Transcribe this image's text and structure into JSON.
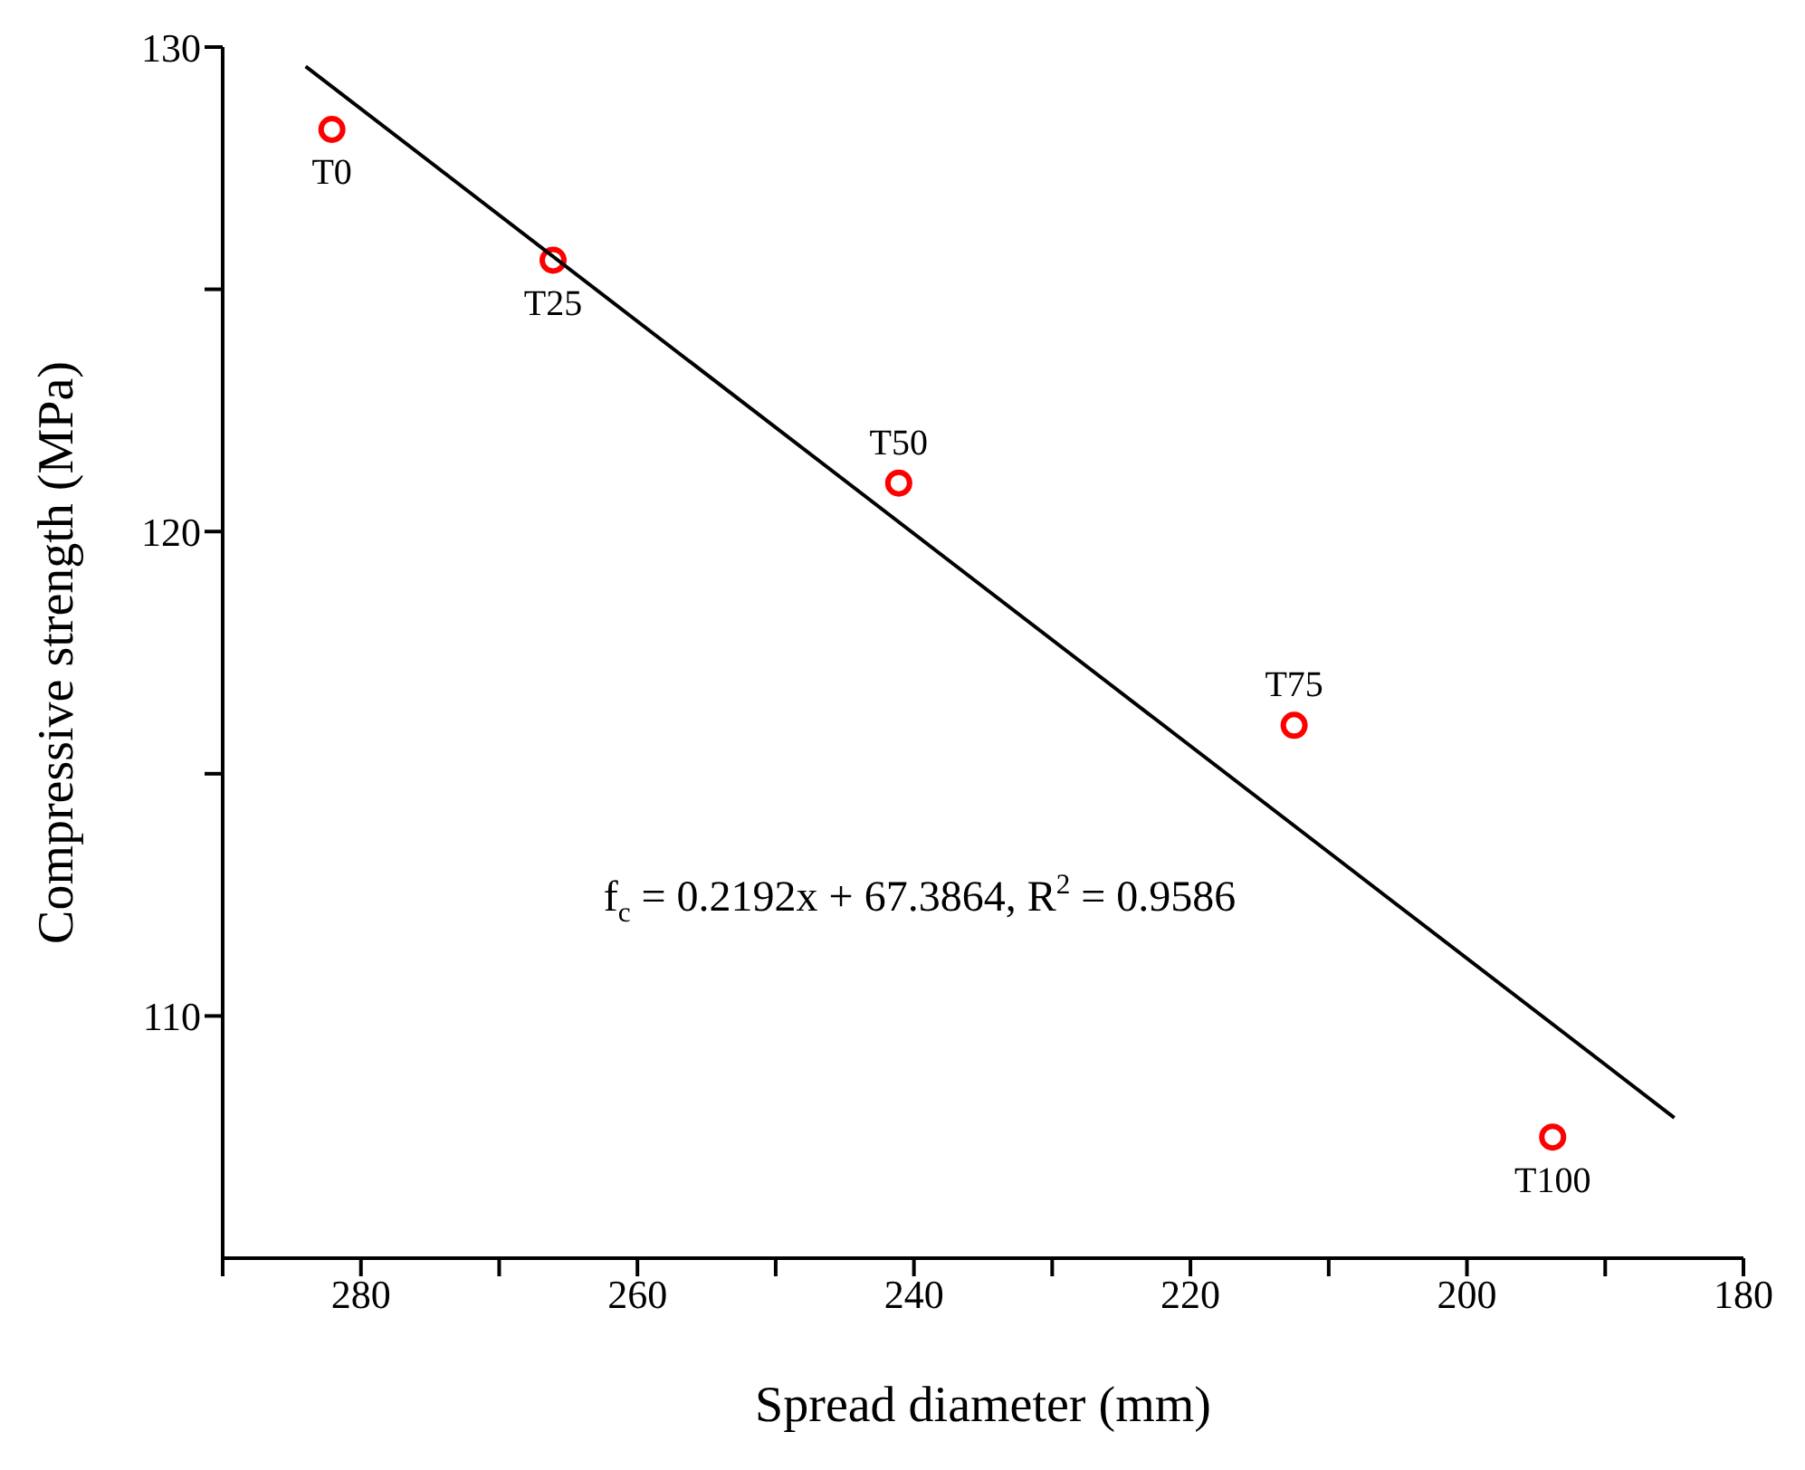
{
  "chart_data": {
    "type": "scatter",
    "xlabel": "Spread diameter (mm)",
    "ylabel": "Compressive strength (MPa)",
    "xlim": [
      290,
      180
    ],
    "xticks": [
      {
        "value": 290,
        "label": null
      },
      280,
      {
        "value": 270,
        "label": null
      },
      260,
      {
        "value": 250,
        "label": null
      },
      240,
      {
        "value": 230,
        "label": null
      },
      220,
      {
        "value": 210,
        "label": null
      },
      200,
      {
        "value": 190,
        "label": null
      },
      180
    ],
    "ylim": [
      105,
      130
    ],
    "yticks": [
      110,
      {
        "value": 115,
        "label": null
      },
      120,
      {
        "value": 125,
        "label": null
      },
      130
    ],
    "grid": false,
    "legend": false,
    "series": [
      {
        "color": "#ff0000",
        "marker": "circle",
        "x": [
          282.1,
          266.1,
          241.1,
          212.5,
          193.8
        ],
        "values": [
          128.3,
          125.6,
          121.0,
          116.0,
          107.5
        ]
      },
      {
        "type": "line",
        "color": "#000000",
        "marker": "none",
        "line_style": "solid",
        "x": [
          284,
          185
        ],
        "values": [
          129.6,
          107.9
        ]
      }
    ],
    "annotations": [
      {
        "text": "T0",
        "x": 282.1,
        "y": 128.3
      },
      {
        "text": "T25",
        "x": 266.1,
        "y": 125.6
      },
      {
        "text": "T50",
        "x": 241.1,
        "y": 121.0
      },
      {
        "text": "T75",
        "x": 212.5,
        "y": 116.0
      },
      {
        "text": "T100",
        "x": 193.8,
        "y": 107.5
      },
      "f$_{c}$ = 0.2192x + 67.3864, R$^{2}$ = 0.9586"
    ]
  }
}
